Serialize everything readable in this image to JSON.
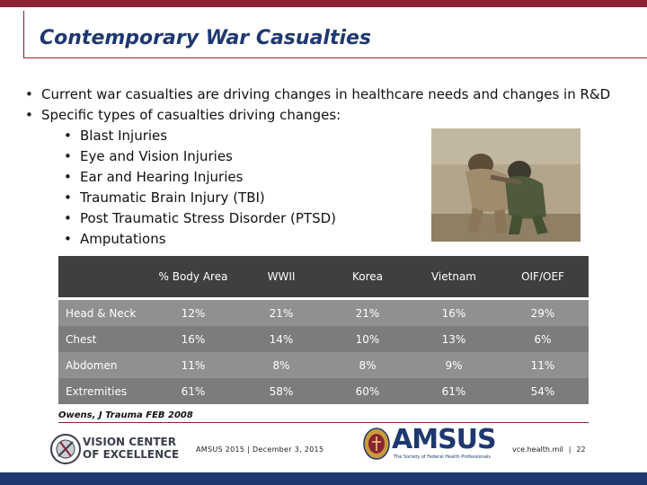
{
  "slide": {
    "title": "Contemporary War Casualties",
    "bullets": [
      {
        "level": 1,
        "text": "Current war casualties are driving changes in healthcare needs and changes in R&D"
      },
      {
        "level": 1,
        "text": "Specific types of casualties driving changes:"
      },
      {
        "level": 2,
        "text": "Blast Injuries"
      },
      {
        "level": 2,
        "text": "Eye and Vision Injuries"
      },
      {
        "level": 2,
        "text": "Ear and Hearing Injuries"
      },
      {
        "level": 2,
        "text": "Traumatic Brain Injury (TBI)"
      },
      {
        "level": 2,
        "text": "Post Traumatic Stress Disorder (PTSD)"
      },
      {
        "level": 2,
        "text": "Amputations"
      }
    ],
    "bullet_glyph": "•"
  },
  "table": {
    "headers": [
      "",
      "% Body Area",
      "WWII",
      "Korea",
      "Vietnam",
      "OIF/OEF"
    ],
    "rows": [
      [
        "Head & Neck",
        "12%",
        "21%",
        "21%",
        "16%",
        "29%"
      ],
      [
        "Chest",
        "16%",
        "14%",
        "10%",
        "13%",
        "6%"
      ],
      [
        "Abdomen",
        "11%",
        "8%",
        "8%",
        "9%",
        "11%"
      ],
      [
        "Extremities",
        "61%",
        "58%",
        "60%",
        "61%",
        "54%"
      ]
    ]
  },
  "citation": "Owens, J Trauma FEB 2008",
  "footer": {
    "vce_line1": "VISION CENTER",
    "vce_line2": "OF EXCELLENCE",
    "center_text": "AMSUS 2015 | December 3, 2015",
    "amsus_wordmark": "AMSUS",
    "amsus_tagline": "The Society of Federal Health Professionals",
    "url": "vce.health.mil",
    "separator": "|",
    "page_number": "22"
  },
  "colors": {
    "accent_maroon": "#8b2332",
    "navy": "#1f3870",
    "table_header": "#3f3f3f",
    "table_row_light": "#909090",
    "table_row_dark": "#7c7c7c"
  },
  "icons": {
    "photo": "soldiers-embracing-photo",
    "vce_logo": "vce-emblem-icon",
    "amsus_seal": "amsus-seal-icon"
  }
}
